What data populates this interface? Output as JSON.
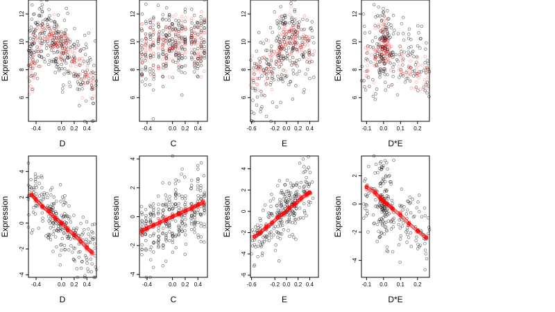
{
  "chart_data": [
    {
      "type": "scatter",
      "xlabel": "D",
      "ylabel": "Expression",
      "xlim": [
        -0.52,
        0.55
      ],
      "ylim": [
        4.3,
        13.0
      ],
      "xticks": [
        "-0.4",
        "0.0",
        "0.2",
        "0.4"
      ],
      "xtickv": [
        -0.4,
        0,
        0.2,
        0.4
      ],
      "yticks": [
        "6",
        "8",
        "10",
        "12"
      ],
      "ytickv": [
        6,
        8,
        10,
        12
      ],
      "series": [
        {
          "color": "#000000",
          "mode": "cloud",
          "x": [
            -0.48,
            -0.45,
            -0.4,
            -0.35,
            -0.3,
            -0.2,
            -0.15,
            -0.1,
            -0.05,
            0,
            0.05,
            0.1,
            0.2,
            0.3,
            0.4,
            0.5
          ],
          "y": [
            9.0,
            10.0,
            10.0,
            10.2,
            10.5,
            10.5,
            10.2,
            10.0,
            9.8,
            9.6,
            9.4,
            9.1,
            8.7,
            8.2,
            7.6,
            7.2
          ],
          "spread": 1.3
        },
        {
          "color": "#ff0000",
          "mode": "cloud",
          "x": [
            -0.48,
            -0.45,
            -0.4,
            -0.3,
            -0.2,
            -0.15,
            -0.1,
            -0.05,
            0,
            0.05,
            0.1,
            0.2,
            0.3,
            0.4,
            0.5
          ],
          "y": [
            7.5,
            8.5,
            9.8,
            10.3,
            10.5,
            10.4,
            10.0,
            9.8,
            9.6,
            9.5,
            9.2,
            8.8,
            8.0,
            7.5,
            7.0
          ],
          "spread": 0.6
        }
      ]
    },
    {
      "type": "scatter",
      "xlabel": "C",
      "ylabel": "Expression",
      "xlim": [
        -0.52,
        0.55
      ],
      "ylim": [
        4.3,
        13.0
      ],
      "xticks": [
        "-0.4",
        "0.0",
        "0.2",
        "0.4"
      ],
      "xtickv": [
        -0.4,
        0,
        0.2,
        0.4
      ],
      "yticks": [
        "6",
        "8",
        "10",
        "12"
      ],
      "ytickv": [
        6,
        8,
        10,
        12
      ],
      "series": [
        {
          "color": "#000000",
          "mode": "columns",
          "x": [
            -0.48,
            -0.42,
            -0.35,
            -0.3,
            -0.22,
            -0.15,
            -0.1,
            -0.05,
            0,
            0.05,
            0.1,
            0.15,
            0.2,
            0.3,
            0.35,
            0.4,
            0.45,
            0.5
          ],
          "y": [
            9.5,
            9.6,
            9.6,
            9.7,
            9.7,
            9.7,
            9.8,
            9.8,
            9.8,
            9.8,
            9.9,
            9.9,
            9.9,
            10.0,
            10.0,
            10.0,
            10.1,
            10.1
          ],
          "spread": 1.3
        },
        {
          "color": "#ff0000",
          "mode": "columns",
          "x": [
            -0.48,
            -0.42,
            -0.35,
            -0.3,
            -0.22,
            -0.15,
            -0.1,
            -0.05,
            0,
            0.05,
            0.1,
            0.15,
            0.2,
            0.3,
            0.35,
            0.4,
            0.45,
            0.5
          ],
          "y": [
            9.5,
            9.5,
            9.5,
            9.6,
            9.6,
            9.7,
            9.7,
            9.7,
            9.8,
            9.8,
            9.8,
            9.9,
            9.9,
            10.0,
            10.0,
            10.0,
            10.1,
            10.1
          ],
          "spread": 1.0
        }
      ]
    },
    {
      "type": "scatter",
      "xlabel": "E",
      "ylabel": "Expression",
      "xlim": [
        -0.62,
        0.55
      ],
      "ylim": [
        4.3,
        13.0
      ],
      "xticks": [
        "-0.6",
        "-0.2",
        "0.0",
        "0.2",
        "0.4"
      ],
      "xtickv": [
        -0.6,
        -0.2,
        0,
        0.2,
        0.4
      ],
      "yticks": [
        "6",
        "8",
        "10",
        "12"
      ],
      "ytickv": [
        6,
        8,
        10,
        12
      ],
      "series": [
        {
          "color": "#000000",
          "mode": "cloud",
          "x": [
            -0.55,
            -0.45,
            -0.35,
            -0.25,
            -0.15,
            -0.1,
            -0.05,
            0,
            0.05,
            0.1,
            0.15,
            0.2,
            0.3,
            0.4
          ],
          "y": [
            7.0,
            7.6,
            8.0,
            8.5,
            9.0,
            9.3,
            9.6,
            9.8,
            10.0,
            10.1,
            10.0,
            9.9,
            9.7,
            9.4
          ],
          "spread": 1.4
        },
        {
          "color": "#ff0000",
          "mode": "cloud",
          "x": [
            -0.55,
            -0.45,
            -0.35,
            -0.25,
            -0.15,
            -0.1,
            -0.05,
            0,
            0.05,
            0.1,
            0.15,
            0.2,
            0.3,
            0.4
          ],
          "y": [
            7.2,
            7.5,
            8.0,
            8.5,
            9.2,
            9.6,
            9.9,
            10.1,
            10.2,
            10.2,
            10.1,
            10.0,
            9.8,
            9.5
          ],
          "spread": 0.8
        }
      ]
    },
    {
      "type": "scatter",
      "xlabel": "D*E",
      "ylabel": "Expression",
      "xlim": [
        -0.13,
        0.27
      ],
      "ylim": [
        4.3,
        13.0
      ],
      "xticks": [
        "-0.1",
        "0.0",
        "0.1",
        "0.2"
      ],
      "xtickv": [
        -0.1,
        0,
        0.1,
        0.2
      ],
      "yticks": [
        "6",
        "8",
        "10",
        "12"
      ],
      "ytickv": [
        6,
        8,
        10,
        12
      ],
      "series": [
        {
          "color": "#000000",
          "mode": "cloud",
          "x": [
            -0.1,
            -0.05,
            -0.02,
            -0.01,
            0,
            0.005,
            0.01,
            0.02,
            0.05,
            0.1,
            0.15,
            0.2,
            0.25
          ],
          "y": [
            8.5,
            9.0,
            9.5,
            10.0,
            10.2,
            10.0,
            9.8,
            9.5,
            9.0,
            8.8,
            8.5,
            8.3,
            8.0
          ],
          "spread": 1.4
        },
        {
          "color": "#ff0000",
          "mode": "cloud",
          "x": [
            -0.1,
            -0.05,
            -0.02,
            -0.01,
            0,
            0.005,
            0.01,
            0.02,
            0.05,
            0.1,
            0.15,
            0.2,
            0.25
          ],
          "y": [
            8.3,
            8.8,
            9.5,
            10.0,
            10.2,
            10.0,
            9.8,
            9.4,
            8.8,
            8.5,
            8.2,
            8.0,
            7.6
          ],
          "spread": 0.8
        }
      ]
    },
    {
      "type": "scatter",
      "xlabel": "D",
      "ylabel": "Expression",
      "xlim": [
        -0.52,
        0.55
      ],
      "ylim": [
        -4.2,
        5.2
      ],
      "xticks": [
        "-0.4",
        "0.0",
        "0.2",
        "0.4"
      ],
      "xtickv": [
        -0.4,
        0,
        0.2,
        0.4
      ],
      "yticks": [
        "-4",
        "-2",
        "0",
        "2",
        "4"
      ],
      "ytickv": [
        -4,
        -2,
        0,
        2,
        4
      ],
      "series": [
        {
          "color": "#000000",
          "mode": "cloud",
          "x": [
            -0.48,
            -0.4,
            -0.3,
            -0.2,
            -0.15,
            -0.1,
            -0.05,
            0,
            0.05,
            0.1,
            0.2,
            0.3,
            0.4,
            0.5
          ],
          "y": [
            2.3,
            2.0,
            1.5,
            1.0,
            0.7,
            0.4,
            0.2,
            0.0,
            -0.2,
            -0.5,
            -1.0,
            -1.4,
            -1.9,
            -2.3
          ],
          "spread": 1.2
        },
        {
          "color": "#ff0000",
          "mode": "line",
          "x": [
            -0.47,
            -0.4,
            -0.3,
            -0.2,
            -0.1,
            0,
            0.1,
            0.2,
            0.3,
            0.4,
            0.48
          ],
          "y": [
            2.2,
            1.8,
            1.3,
            0.9,
            0.4,
            0.0,
            -0.5,
            -0.9,
            -1.4,
            -1.9,
            -2.3
          ],
          "spread": 0.1
        }
      ]
    },
    {
      "type": "scatter",
      "xlabel": "C",
      "ylabel": "Expression",
      "xlim": [
        -0.52,
        0.55
      ],
      "ylim": [
        -4.2,
        4.2
      ],
      "xticks": [
        "-0.4",
        "0.0",
        "0.2",
        "0.4"
      ],
      "xtickv": [
        -0.4,
        0,
        0.2,
        0.4
      ],
      "yticks": [
        "-4",
        "-2",
        "0",
        "2",
        "4"
      ],
      "ytickv": [
        -4,
        -2,
        0,
        2,
        4
      ],
      "series": [
        {
          "color": "#000000",
          "mode": "columns",
          "x": [
            -0.48,
            -0.42,
            -0.35,
            -0.3,
            -0.22,
            -0.15,
            -0.1,
            -0.05,
            0,
            0.05,
            0.1,
            0.15,
            0.2,
            0.3,
            0.35,
            0.4,
            0.45,
            0.5
          ],
          "y": [
            -1.0,
            -0.9,
            -0.8,
            -0.7,
            -0.6,
            -0.4,
            -0.3,
            -0.2,
            -0.1,
            0.0,
            0.1,
            0.2,
            0.3,
            0.5,
            0.6,
            0.7,
            0.8,
            0.9
          ],
          "spread": 1.3
        },
        {
          "color": "#ff0000",
          "mode": "line",
          "x": [
            -0.48,
            -0.4,
            -0.3,
            -0.2,
            -0.1,
            0,
            0.1,
            0.2,
            0.3,
            0.4,
            0.48
          ],
          "y": [
            -1.0,
            -0.8,
            -0.6,
            -0.4,
            -0.2,
            0.0,
            0.2,
            0.4,
            0.6,
            0.8,
            1.0
          ],
          "spread": 0.1
        }
      ]
    },
    {
      "type": "scatter",
      "xlabel": "E",
      "ylabel": "Expression",
      "xlim": [
        -0.62,
        0.55
      ],
      "ylim": [
        -6.2,
        5.2
      ],
      "xticks": [
        "-0.6",
        "-0.2",
        "0.0",
        "0.2",
        "0.4"
      ],
      "xtickv": [
        -0.6,
        -0.2,
        0,
        0.2,
        0.4
      ],
      "yticks": [
        "-6",
        "-4",
        "-2",
        "0",
        "2",
        "4"
      ],
      "ytickv": [
        -6,
        -4,
        -2,
        0,
        2,
        4
      ],
      "series": [
        {
          "color": "#000000",
          "mode": "cloud",
          "x": [
            -0.55,
            -0.45,
            -0.35,
            -0.25,
            -0.15,
            -0.1,
            -0.05,
            0,
            0.05,
            0.1,
            0.15,
            0.2,
            0.3,
            0.4
          ],
          "y": [
            -2.6,
            -2.2,
            -1.7,
            -1.1,
            -0.6,
            -0.3,
            0.0,
            0.3,
            0.5,
            0.7,
            0.9,
            1.0,
            1.5,
            1.9
          ],
          "spread": 1.3
        },
        {
          "color": "#ff0000",
          "mode": "line",
          "x": [
            -0.55,
            -0.45,
            -0.35,
            -0.25,
            -0.15,
            -0.05,
            0.05,
            0.15,
            0.25,
            0.35,
            0.4
          ],
          "y": [
            -2.4,
            -2.0,
            -1.5,
            -1.1,
            -0.6,
            -0.2,
            0.3,
            0.7,
            1.2,
            1.6,
            1.8
          ],
          "spread": 0.1
        }
      ]
    },
    {
      "type": "scatter",
      "xlabel": "D*E",
      "ylabel": "Expression",
      "xlim": [
        -0.13,
        0.27
      ],
      "ylim": [
        -5.2,
        3.4
      ],
      "xticks": [
        "-0.1",
        "0.0",
        "0.1",
        "0.2"
      ],
      "xtickv": [
        -0.1,
        0,
        0.1,
        0.2
      ],
      "yticks": [
        "-4",
        "-2",
        "0",
        "2"
      ],
      "ytickv": [
        -4,
        -2,
        0,
        2
      ],
      "series": [
        {
          "color": "#000000",
          "mode": "cloud",
          "x": [
            -0.1,
            -0.05,
            -0.02,
            -0.01,
            0,
            0.005,
            0.01,
            0.02,
            0.05,
            0.1,
            0.15,
            0.2,
            0.25
          ],
          "y": [
            1.0,
            0.7,
            0.4,
            0.2,
            0.0,
            -0.1,
            -0.2,
            -0.3,
            -0.5,
            -1.0,
            -1.5,
            -2.0,
            -2.5
          ],
          "spread": 1.3
        },
        {
          "color": "#ff0000",
          "mode": "line",
          "x": [
            -0.1,
            -0.05,
            -0.02,
            0,
            0.02,
            0.05,
            0.1,
            0.15,
            0.2,
            0.25
          ],
          "y": [
            1.2,
            0.8,
            0.4,
            0.2,
            0.0,
            -0.3,
            -0.8,
            -1.4,
            -1.9,
            -2.4
          ],
          "spread": 0.1
        }
      ]
    }
  ]
}
